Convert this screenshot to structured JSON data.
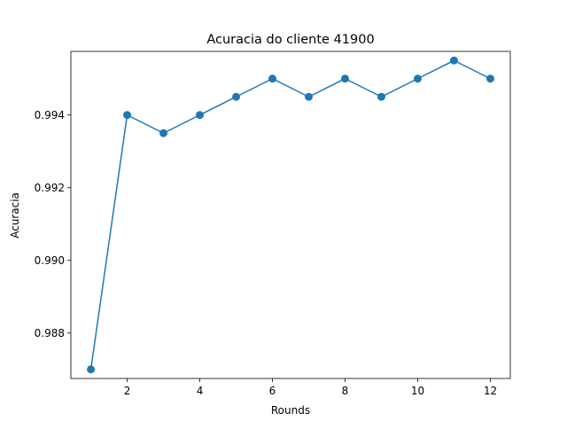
{
  "chart_data": {
    "type": "line",
    "title": "Acuracia do cliente 41900",
    "xlabel": "Rounds",
    "ylabel": "Acuracia",
    "xlim": [
      0.45,
      12.55
    ],
    "ylim": [
      0.98675,
      0.99575
    ],
    "xticks": [
      2,
      4,
      6,
      8,
      10,
      12
    ],
    "xtick_labels": [
      "2",
      "4",
      "6",
      "8",
      "10",
      "12"
    ],
    "yticks": [
      0.988,
      0.99,
      0.992,
      0.994
    ],
    "ytick_labels": [
      "0.988",
      "0.990",
      "0.992",
      "0.994"
    ],
    "grid": false,
    "series": [
      {
        "color": "#1f77b4",
        "marker": "circle",
        "x": [
          1,
          2,
          3,
          4,
          5,
          6,
          7,
          8,
          9,
          10,
          11,
          12
        ],
        "y": [
          0.987,
          0.994,
          0.9935,
          0.994,
          0.9945,
          0.995,
          0.9945,
          0.995,
          0.9945,
          0.995,
          0.9955,
          0.995
        ]
      }
    ]
  }
}
